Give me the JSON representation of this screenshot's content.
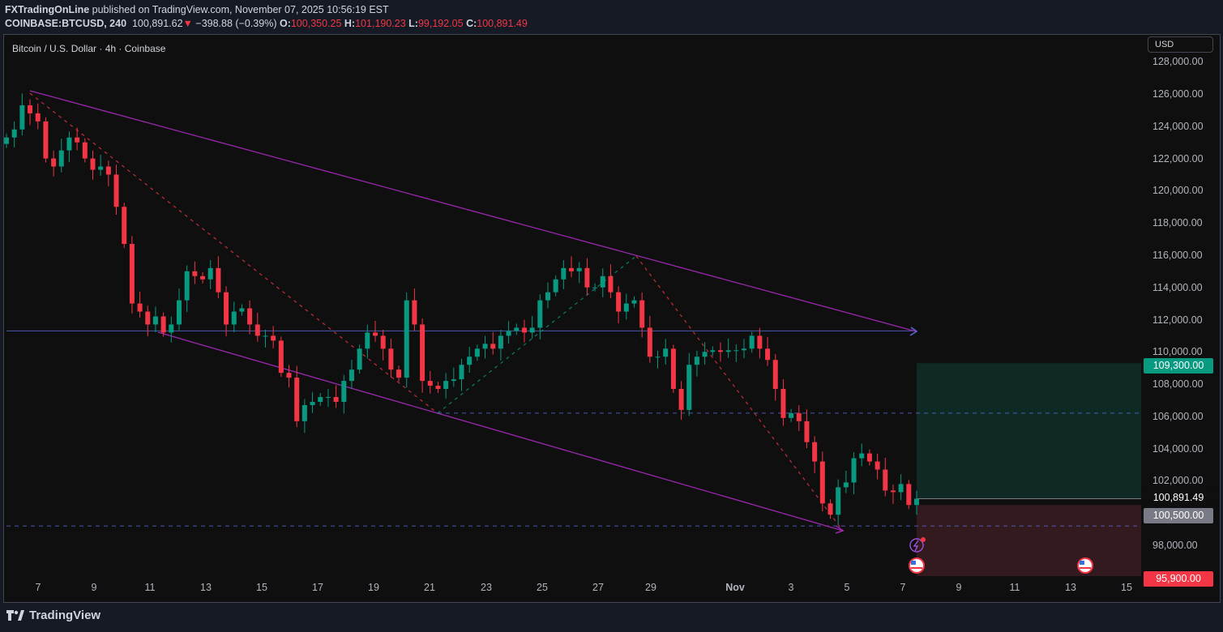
{
  "header": {
    "author": "FXTradingOnLine",
    "published": "published on TradingView.com, November 07, 2025 10:56:19 EST",
    "symbol": "COINBASE:BTCUSD, 240",
    "last": "100,891.62",
    "change_arrow": "▼",
    "change": "−398.88 (−0.39%)",
    "o_label": "O:",
    "o": "100,350.25",
    "h_label": "H:",
    "h": "101,190.23",
    "l_label": "L:",
    "l": "99,192.05",
    "c_label": "C:",
    "c": "100,891.49"
  },
  "chart_title": "Bitcoin / U.S. Dollar · 4h · Coinbase",
  "currency_button": "USD",
  "footer": {
    "brand": "TradingView"
  },
  "chart_data": {
    "type": "candlestick",
    "interval": "4h",
    "ylim": [
      97000,
      128500
    ],
    "y_ticks": [
      "128,000.00",
      "126,000.00",
      "124,000.00",
      "122,000.00",
      "120,000.00",
      "118,000.00",
      "116,000.00",
      "114,000.00",
      "112,000.00",
      "110,000.00",
      "108,000.00",
      "106,000.00",
      "104,000.00",
      "102,000.00",
      "98,000.00"
    ],
    "x_ticks": [
      "7",
      "9",
      "11",
      "13",
      "15",
      "17",
      "19",
      "21",
      "23",
      "25",
      "27",
      "29",
      "Nov",
      "3",
      "5",
      "7",
      "9",
      "11",
      "13",
      "15"
    ],
    "closes": [
      123300,
      123800,
      125300,
      124800,
      124300,
      122000,
      121500,
      122500,
      123300,
      123000,
      122000,
      121300,
      121500,
      121000,
      119000,
      116700,
      113000,
      112500,
      111700,
      112200,
      111200,
      111700,
      113200,
      115000,
      114700,
      114500,
      115200,
      113700,
      111700,
      112500,
      112700,
      111700,
      111000,
      111000,
      110700,
      108700,
      108400,
      105700,
      106700,
      106900,
      107200,
      107200,
      106900,
      108200,
      108900,
      110200,
      111200,
      111000,
      110200,
      108900,
      108400,
      113200,
      111700,
      108200,
      107900,
      107700,
      108200,
      108300,
      109200,
      109700,
      110200,
      110500,
      110200,
      111000,
      111300,
      111500,
      111200,
      111500,
      113200,
      113700,
      114500,
      115200,
      115000,
      115200,
      114000,
      114000,
      114700,
      113700,
      112500,
      113000,
      113200,
      111500,
      109700,
      109700,
      110200,
      107700,
      106400,
      109200,
      109700,
      110000,
      110100,
      110000,
      110100,
      110100,
      110200,
      111000,
      110200,
      109500,
      107700,
      105900,
      106200,
      105700,
      104400,
      103200,
      100600,
      99900,
      101600,
      101900,
      103400,
      103700,
      103200,
      102700,
      101400,
      101300,
      101800,
      100500,
      100891.49
    ],
    "levels": {
      "target": {
        "price": 109300,
        "label": "109,300.00"
      },
      "entry": {
        "price": 100500,
        "label": "100,500.00"
      },
      "stop": {
        "price": 95900,
        "label": "95,900.00"
      },
      "last_price": {
        "price": 100891.49,
        "label": "100,891.49"
      },
      "horizontal_line": 111300,
      "dashed_level_1": 106200,
      "dashed_level_2": 99200
    },
    "colors": {
      "up": "#089981",
      "down": "#f23645",
      "channel": "#9c27b0",
      "hline": "#5b6bd6",
      "target_zone": "#0f2a24",
      "stop_zone": "#331a1e",
      "target_tag": "#089981",
      "stop_tag": "#f23645",
      "entry_tag": "#787b86"
    }
  }
}
